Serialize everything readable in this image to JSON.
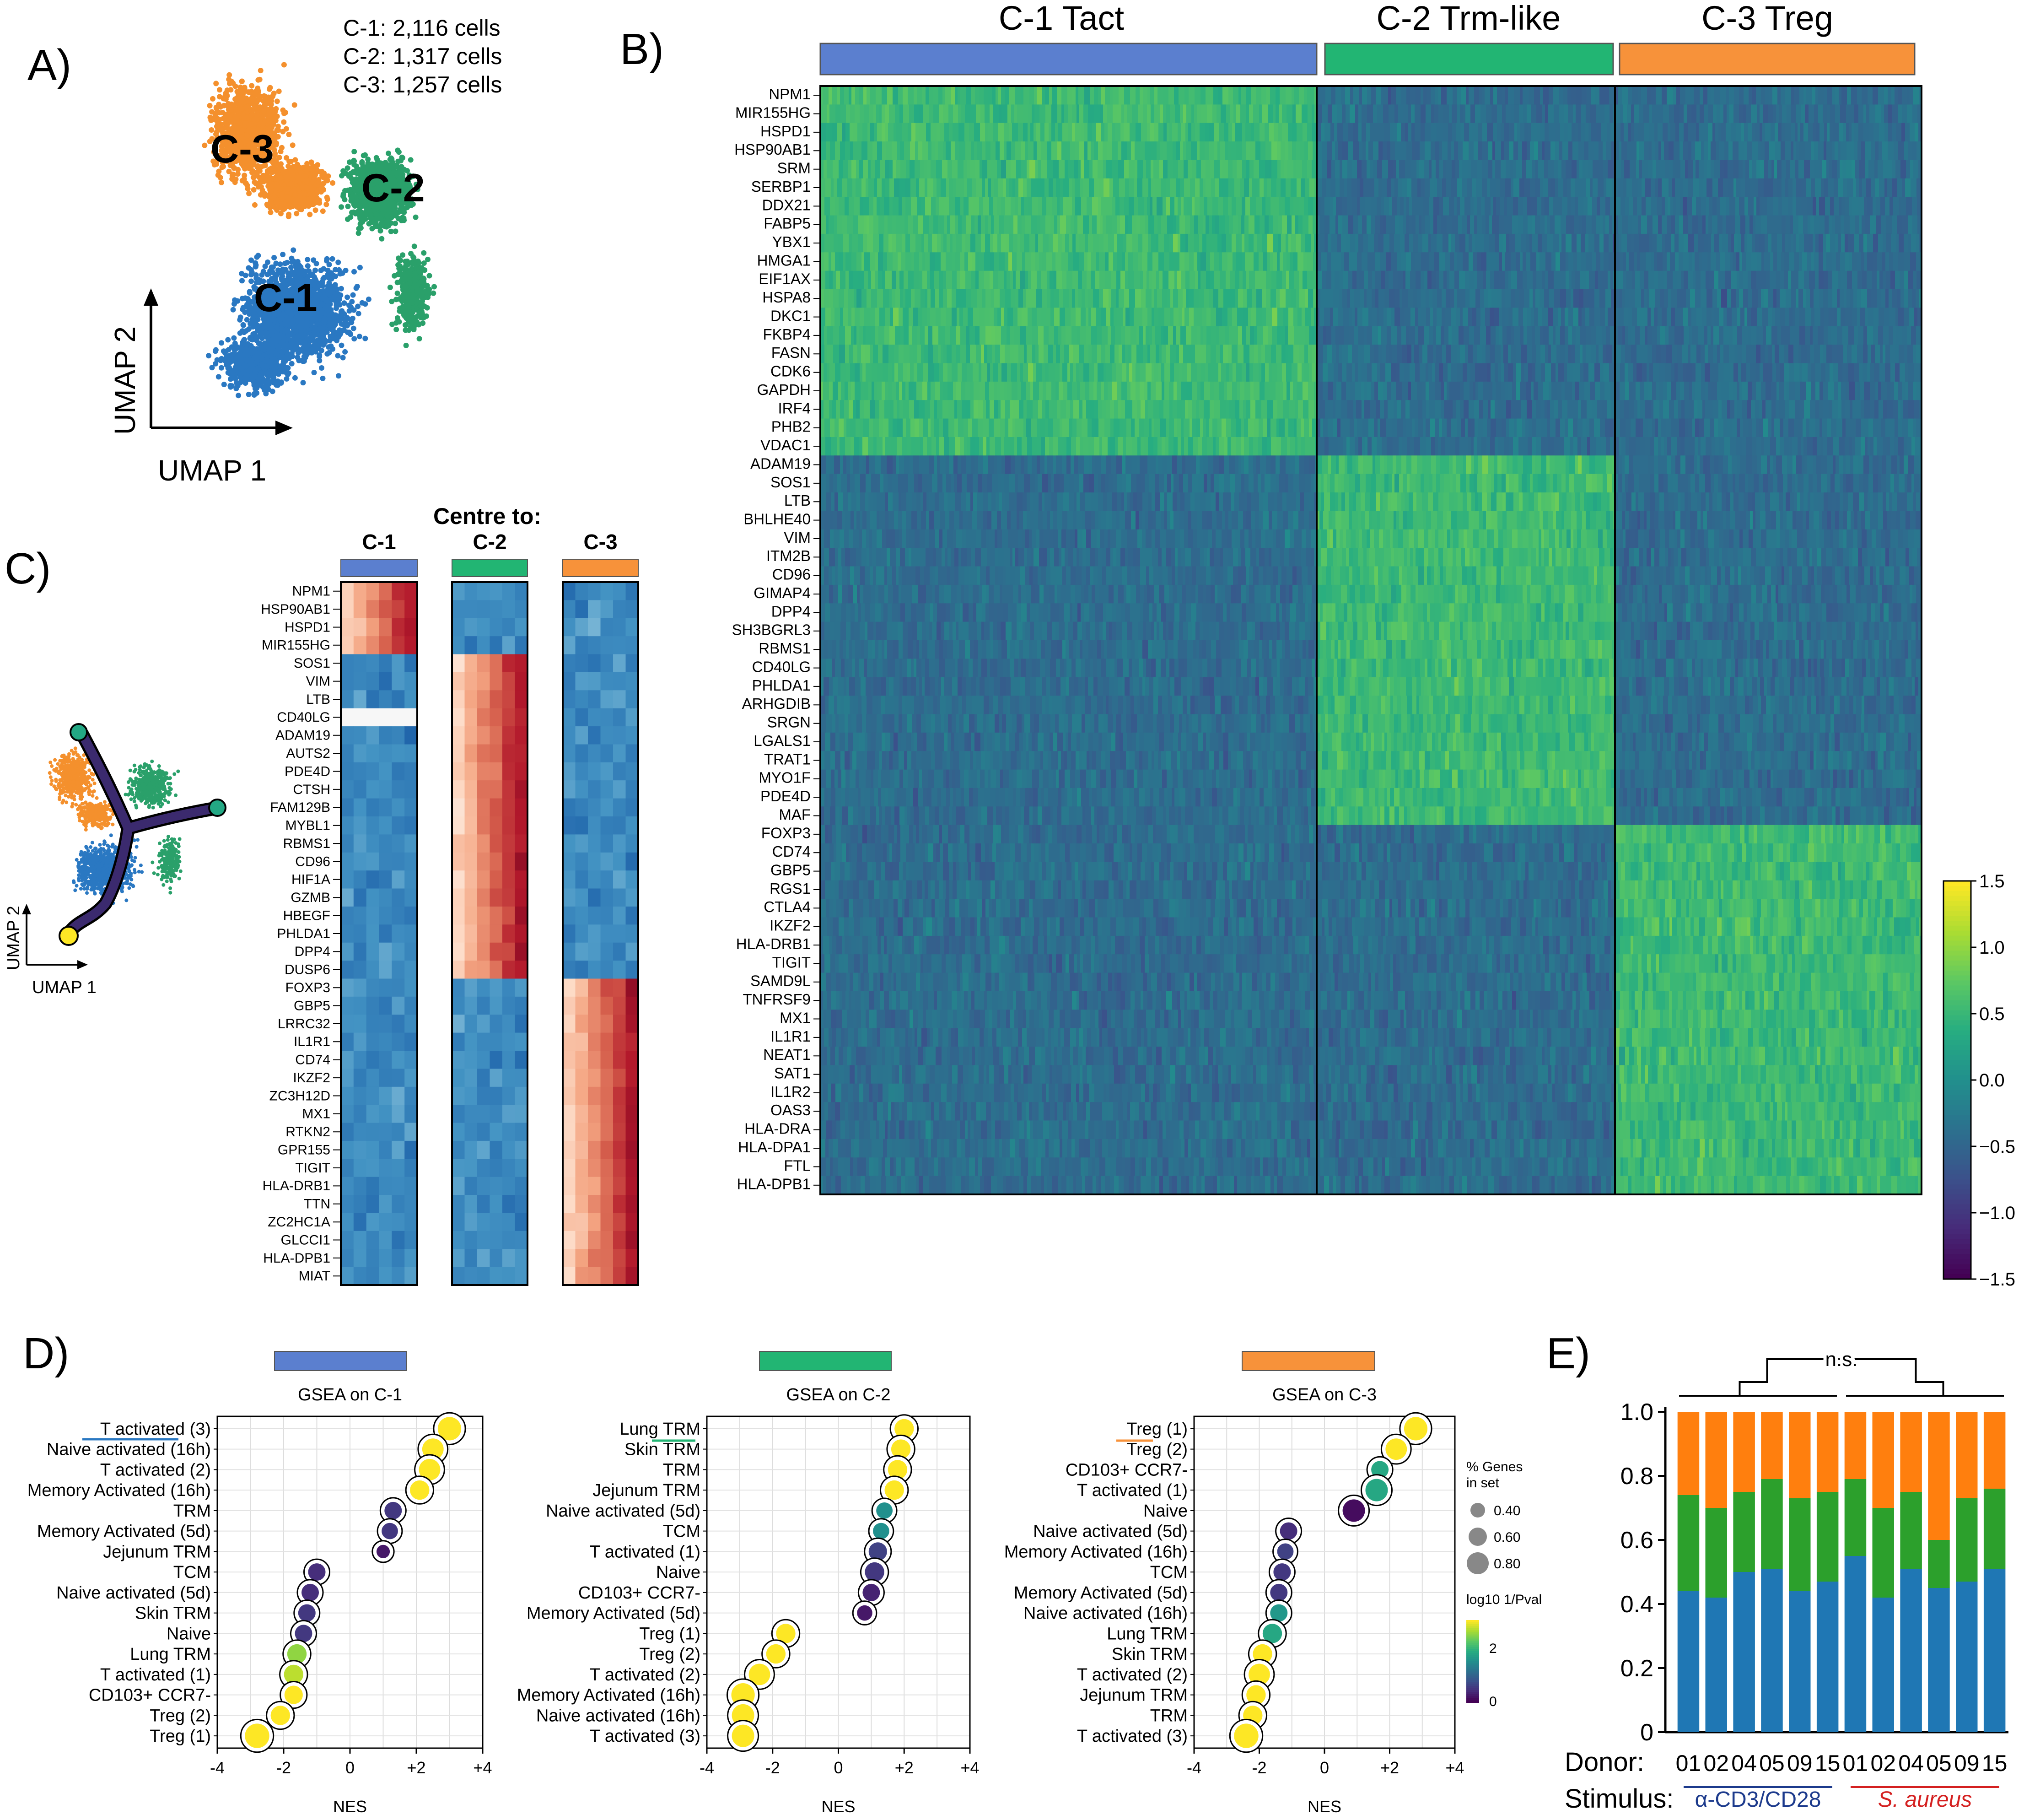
{
  "panels": {
    "a": "A)",
    "b": "B)",
    "c": "C)",
    "d": "D)",
    "e": "E)"
  },
  "colors": {
    "c1": "#5b7fcf",
    "c2": "#22b573",
    "c3": "#f7923a",
    "umap_c1": "#2a78c2",
    "umap_c2": "#2aa06a",
    "umap_c3": "#f4902d"
  },
  "panel_a": {
    "counts": [
      "C-1: 2,116 cells",
      "C-2: 1,317 cells",
      "C-3: 1,257 cells"
    ],
    "cluster_labels": [
      "C-3",
      "C-2",
      "C-1"
    ],
    "xlabel": "UMAP 1",
    "ylabel": "UMAP 2"
  },
  "panel_b": {
    "cluster_headers": [
      "C-1 Tact",
      "C-2 Trm-like",
      "C-3 Treg"
    ],
    "genes": [
      "NPM1",
      "MIR155HG",
      "HSPD1",
      "HSP90AB1",
      "SRM",
      "SERBP1",
      "DDX21",
      "FABP5",
      "YBX1",
      "HMGA1",
      "EIF1AX",
      "HSPA8",
      "DKC1",
      "FKBP4",
      "FASN",
      "CDK6",
      "GAPDH",
      "IRF4",
      "PHB2",
      "VDAC1",
      "ADAM19",
      "SOS1",
      "LTB",
      "BHLHE40",
      "VIM",
      "ITM2B",
      "CD96",
      "GIMAP4",
      "DPP4",
      "SH3BGRL3",
      "RBMS1",
      "CD40LG",
      "PHLDA1",
      "ARHGDIB",
      "SRGN",
      "LGALS1",
      "TRAT1",
      "MYO1F",
      "PDE4D",
      "MAF",
      "FOXP3",
      "CD74",
      "GBP5",
      "RGS1",
      "CTLA4",
      "IKZF2",
      "HLA-DRB1",
      "TIGIT",
      "SAMD9L",
      "TNFRSF9",
      "MX1",
      "IL1R1",
      "NEAT1",
      "SAT1",
      "IL1R2",
      "OAS3",
      "HLA-DRA",
      "HLA-DPA1",
      "FTL",
      "HLA-DPB1"
    ],
    "colorbar_ticks": [
      "1.5",
      "1.0",
      "0.5",
      "0.0",
      "−0.5",
      "−1.0",
      "−1.5"
    ]
  },
  "panel_c": {
    "title": "Centre to:",
    "groups": [
      "C-1",
      "C-2",
      "C-3"
    ],
    "genes": [
      "NPM1",
      "HSP90AB1",
      "HSPD1",
      "MIR155HG",
      "SOS1",
      "VIM",
      "LTB",
      "CD40LG",
      "ADAM19",
      "AUTS2",
      "PDE4D",
      "CTSH",
      "FAM129B",
      "MYBL1",
      "RBMS1",
      "CD96",
      "HIF1A",
      "GZMB",
      "HBEGF",
      "PHLDA1",
      "DPP4",
      "DUSP6",
      "FOXP3",
      "GBP5",
      "LRRC32",
      "IL1R1",
      "CD74",
      "IKZF2",
      "ZC3H12D",
      "MX1",
      "RTKN2",
      "GPR155",
      "TIGIT",
      "HLA-DRB1",
      "TTN",
      "ZC2HC1A",
      "GLCCI1",
      "HLA-DPB1",
      "MIAT"
    ],
    "xlabel": "UMAP 1",
    "ylabel": "UMAP 2"
  },
  "panel_d": {
    "legend": {
      "size_title_1": "% Genes",
      "size_title_2": "in set",
      "sizes": [
        "0.40",
        "0.60",
        "0.80"
      ],
      "color_title": "log10 1/Pval",
      "color_ticks": [
        "2",
        "0"
      ]
    },
    "xlabel": "NES",
    "xticks": [
      "-4",
      "-2",
      "0",
      "+2",
      "+4"
    ]
  },
  "chart_data": [
    {
      "type": "scatter",
      "title": "GSEA on C-1",
      "xlabel": "NES",
      "xlim": [
        -4,
        4
      ],
      "terms": [
        "T activated (3)",
        "Naive activated (16h)",
        "T activated (2)",
        "Memory Activated (16h)",
        "TRM",
        "Memory Activated (5d)",
        "Jejunum TRM",
        "TCM",
        "Naive activated (5d)",
        "Skin TRM",
        "Naive",
        "Lung TRM",
        "T activated (1)",
        "CD103+ CCR7-",
        "Treg (2)",
        "Treg (1)"
      ],
      "nes": [
        3.0,
        2.5,
        2.4,
        2.1,
        1.3,
        1.2,
        1.0,
        -1.0,
        -1.2,
        -1.3,
        -1.4,
        -1.6,
        -1.7,
        -1.7,
        -2.1,
        -2.8
      ],
      "size": [
        0.8,
        0.7,
        0.7,
        0.6,
        0.5,
        0.45,
        0.3,
        0.5,
        0.5,
        0.5,
        0.5,
        0.6,
        0.6,
        0.55,
        0.6,
        0.85
      ],
      "log10_inv_p": [
        3.0,
        3.0,
        3.0,
        3.0,
        0.5,
        0.5,
        0.2,
        0.4,
        0.4,
        0.5,
        0.5,
        2.5,
        2.7,
        3.0,
        3.0,
        3.0
      ]
    },
    {
      "type": "scatter",
      "title": "GSEA on C-2",
      "xlabel": "NES",
      "xlim": [
        -4,
        4
      ],
      "terms": [
        "Lung TRM",
        "Skin TRM",
        "TRM",
        "Jejunum TRM",
        "Naive activated (5d)",
        "TCM",
        "T activated (1)",
        "Naive",
        "CD103+ CCR7-",
        "Memory Activated (5d)",
        "Treg (1)",
        "Treg (2)",
        "T activated (2)",
        "Memory Activated (16h)",
        "Naive activated (16h)",
        "T activated (3)"
      ],
      "nes": [
        2.0,
        1.9,
        1.8,
        1.7,
        1.4,
        1.3,
        1.2,
        1.1,
        1.0,
        0.8,
        -1.6,
        -1.9,
        -2.4,
        -2.9,
        -2.9,
        -2.9
      ],
      "size": [
        0.6,
        0.6,
        0.6,
        0.6,
        0.45,
        0.45,
        0.55,
        0.6,
        0.5,
        0.4,
        0.6,
        0.6,
        0.7,
        0.8,
        0.75,
        0.75
      ],
      "log10_inv_p": [
        3.0,
        3.0,
        3.0,
        3.0,
        1.5,
        1.5,
        0.6,
        0.5,
        0.3,
        0.2,
        3.0,
        3.0,
        3.0,
        3.0,
        3.0,
        3.0
      ]
    },
    {
      "type": "scatter",
      "title": "GSEA on C-3",
      "xlabel": "NES",
      "xlim": [
        -4,
        4
      ],
      "terms": [
        "Treg (1)",
        "Treg (2)",
        "CD103+ CCR7-",
        "T activated (1)",
        "Naive",
        "Naive activated (5d)",
        "Memory Activated (16h)",
        "TCM",
        "Memory Activated (5d)",
        "Naive activated (16h)",
        "Lung TRM",
        "Skin TRM",
        "T activated (2)",
        "Jejunum TRM",
        "TRM",
        "T activated (3)"
      ],
      "nes": [
        2.8,
        2.2,
        1.7,
        1.6,
        0.9,
        -1.1,
        -1.2,
        -1.3,
        -1.4,
        -1.4,
        -1.6,
        -1.9,
        -2.0,
        -2.1,
        -2.2,
        -2.4
      ],
      "size": [
        0.8,
        0.7,
        0.5,
        0.75,
        0.75,
        0.5,
        0.45,
        0.5,
        0.5,
        0.5,
        0.6,
        0.6,
        0.7,
        0.6,
        0.6,
        0.85
      ],
      "log10_inv_p": [
        3.0,
        3.0,
        1.8,
        1.8,
        0.1,
        0.4,
        0.6,
        0.5,
        0.5,
        1.6,
        1.8,
        3.0,
        3.0,
        3.0,
        3.0,
        3.0
      ]
    },
    {
      "type": "bar",
      "stacked": true,
      "title": "",
      "ylim": [
        0,
        1.0
      ],
      "yticks": [
        "0",
        "0.2",
        "0.4",
        "0.6",
        "0.8",
        "1.0"
      ],
      "donor_label": "Donor:",
      "stimulus_label": "Stimulus:",
      "categories": [
        "01",
        "02",
        "04",
        "05",
        "09",
        "15",
        "01",
        "02",
        "04",
        "05",
        "09",
        "15"
      ],
      "stimulus_groups": [
        "α-CD3/CD28",
        "S. aureus"
      ],
      "stimulus_colors": [
        "#1c3a8c",
        "#d42020"
      ],
      "significance": "n.s.",
      "series": [
        {
          "name": "C-1",
          "color": "#1f77b4",
          "values": [
            0.44,
            0.42,
            0.5,
            0.51,
            0.44,
            0.47,
            0.55,
            0.42,
            0.51,
            0.45,
            0.47,
            0.51
          ]
        },
        {
          "name": "C-2",
          "color": "#2ca02c",
          "values": [
            0.3,
            0.28,
            0.25,
            0.28,
            0.29,
            0.28,
            0.24,
            0.28,
            0.24,
            0.15,
            0.26,
            0.25
          ]
        },
        {
          "name": "C-3",
          "color": "#ff7f0e",
          "values": [
            0.26,
            0.3,
            0.25,
            0.21,
            0.27,
            0.25,
            0.21,
            0.3,
            0.25,
            0.4,
            0.27,
            0.24
          ]
        }
      ]
    }
  ]
}
